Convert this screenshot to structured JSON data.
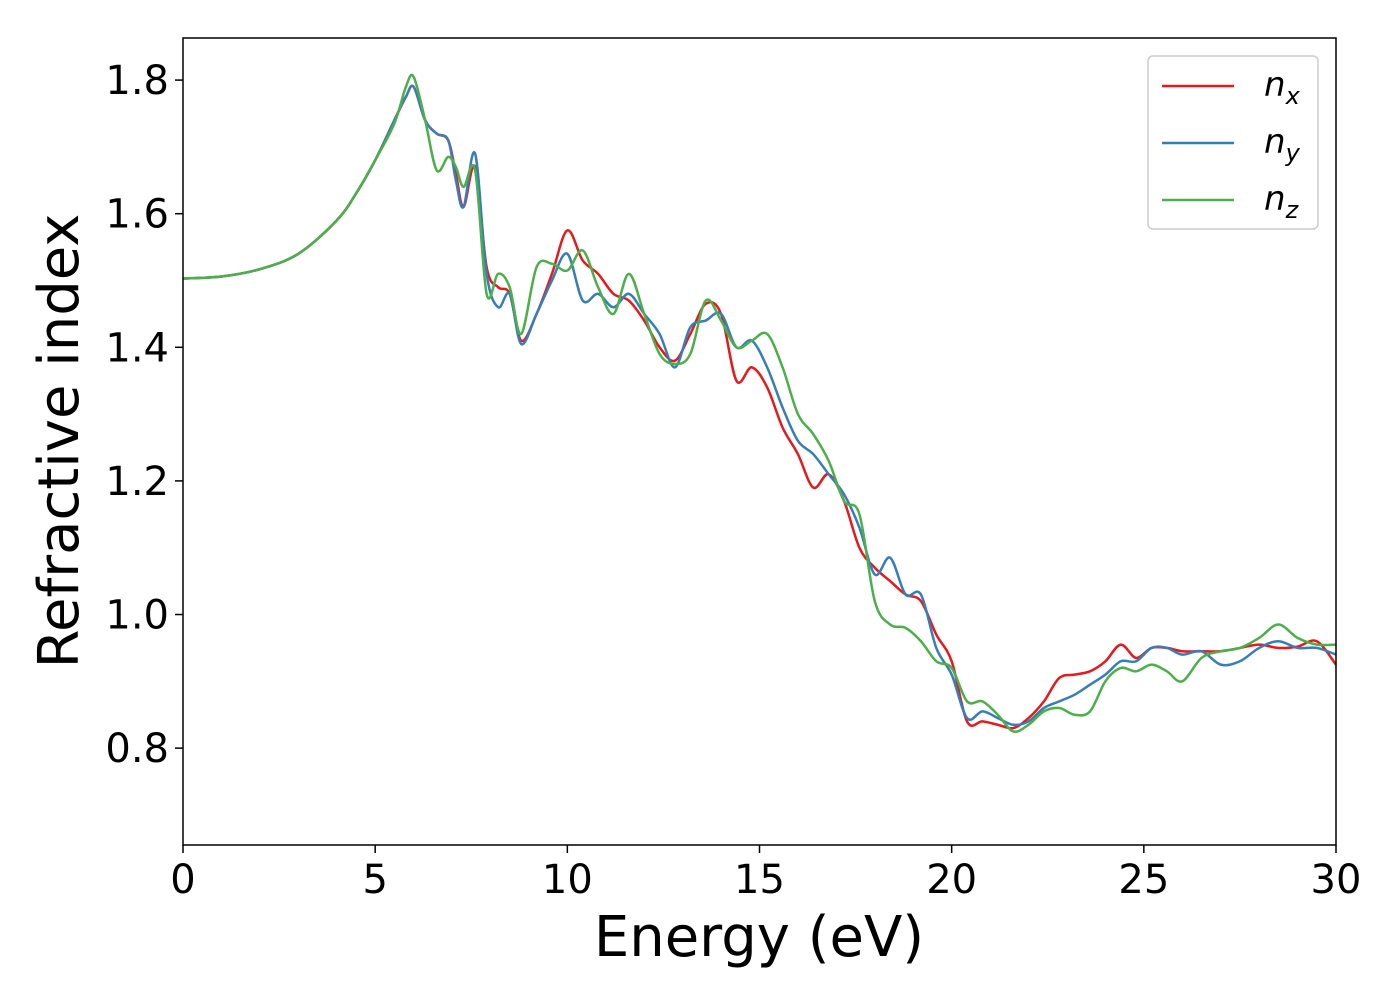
{
  "chart_data": {
    "type": "line",
    "xlabel": "Energy (eV)",
    "ylabel": "Refractive index",
    "x": [
      0,
      1,
      2,
      3,
      4,
      4.5,
      5,
      5.5,
      5.8,
      6,
      6.3,
      6.6,
      6.9,
      7.1,
      7.3,
      7.6,
      7.9,
      8.2,
      8.5,
      8.8,
      9.2,
      9.6,
      10,
      10.4,
      10.8,
      11.2,
      11.6,
      12,
      12.4,
      12.8,
      13.2,
      13.6,
      14,
      14.4,
      14.8,
      15.2,
      15.6,
      16,
      16.4,
      16.8,
      17.2,
      17.6,
      18,
      18.4,
      18.8,
      19.2,
      19.6,
      20,
      20.4,
      20.8,
      21.2,
      21.6,
      22,
      22.4,
      22.8,
      23.2,
      23.6,
      24,
      24.4,
      24.8,
      25.2,
      25.6,
      26,
      26.5,
      27,
      27.5,
      28,
      28.5,
      29,
      29.5,
      30
    ],
    "series": [
      {
        "name": "nx",
        "color": "#e41a1c",
        "values": [
          1.503,
          1.506,
          1.517,
          1.54,
          1.59,
          1.63,
          1.68,
          1.74,
          1.775,
          1.79,
          1.74,
          1.72,
          1.71,
          1.66,
          1.61,
          1.67,
          1.52,
          1.49,
          1.48,
          1.41,
          1.45,
          1.51,
          1.575,
          1.53,
          1.51,
          1.48,
          1.47,
          1.44,
          1.4,
          1.38,
          1.42,
          1.465,
          1.45,
          1.35,
          1.37,
          1.34,
          1.28,
          1.24,
          1.19,
          1.21,
          1.17,
          1.1,
          1.07,
          1.05,
          1.03,
          1.02,
          0.97,
          0.93,
          0.84,
          0.84,
          0.835,
          0.83,
          0.845,
          0.87,
          0.905,
          0.91,
          0.915,
          0.93,
          0.955,
          0.935,
          0.95,
          0.95,
          0.945,
          0.945,
          0.945,
          0.95,
          0.955,
          0.95,
          0.952,
          0.96,
          0.925
        ]
      },
      {
        "name": "ny",
        "color": "#377eb8",
        "values": [
          1.503,
          1.506,
          1.517,
          1.54,
          1.59,
          1.63,
          1.68,
          1.74,
          1.775,
          1.79,
          1.74,
          1.72,
          1.71,
          1.65,
          1.61,
          1.69,
          1.51,
          1.46,
          1.48,
          1.405,
          1.45,
          1.5,
          1.54,
          1.47,
          1.48,
          1.46,
          1.48,
          1.45,
          1.42,
          1.37,
          1.43,
          1.44,
          1.45,
          1.4,
          1.41,
          1.37,
          1.31,
          1.26,
          1.24,
          1.21,
          1.18,
          1.13,
          1.06,
          1.085,
          1.03,
          1.03,
          0.95,
          0.91,
          0.845,
          0.855,
          0.845,
          0.835,
          0.84,
          0.86,
          0.87,
          0.88,
          0.895,
          0.91,
          0.93,
          0.93,
          0.95,
          0.95,
          0.94,
          0.945,
          0.925,
          0.93,
          0.95,
          0.96,
          0.95,
          0.95,
          0.94
        ]
      },
      {
        "name": "nz",
        "color": "#4daf4a",
        "values": [
          1.503,
          1.506,
          1.517,
          1.54,
          1.59,
          1.63,
          1.68,
          1.735,
          1.79,
          1.805,
          1.74,
          1.665,
          1.685,
          1.67,
          1.64,
          1.665,
          1.48,
          1.51,
          1.49,
          1.42,
          1.52,
          1.525,
          1.515,
          1.545,
          1.49,
          1.45,
          1.51,
          1.45,
          1.39,
          1.375,
          1.39,
          1.47,
          1.44,
          1.4,
          1.41,
          1.42,
          1.37,
          1.3,
          1.27,
          1.23,
          1.17,
          1.15,
          1.02,
          0.985,
          0.98,
          0.96,
          0.93,
          0.92,
          0.87,
          0.87,
          0.85,
          0.825,
          0.835,
          0.855,
          0.86,
          0.85,
          0.855,
          0.9,
          0.92,
          0.915,
          0.925,
          0.915,
          0.9,
          0.935,
          0.945,
          0.95,
          0.965,
          0.985,
          0.965,
          0.955,
          0.955
        ]
      }
    ],
    "xlim": [
      0,
      30
    ],
    "xticks": [
      0,
      5,
      10,
      15,
      20,
      25,
      30
    ],
    "ylim": [
      0.655,
      1.863
    ],
    "yticks": [
      0.8,
      {
        "value": 1,
        "label": "1.0"
      },
      1.2,
      1.4,
      1.6,
      1.8
    ],
    "grid": false,
    "legend": "upper right"
  }
}
